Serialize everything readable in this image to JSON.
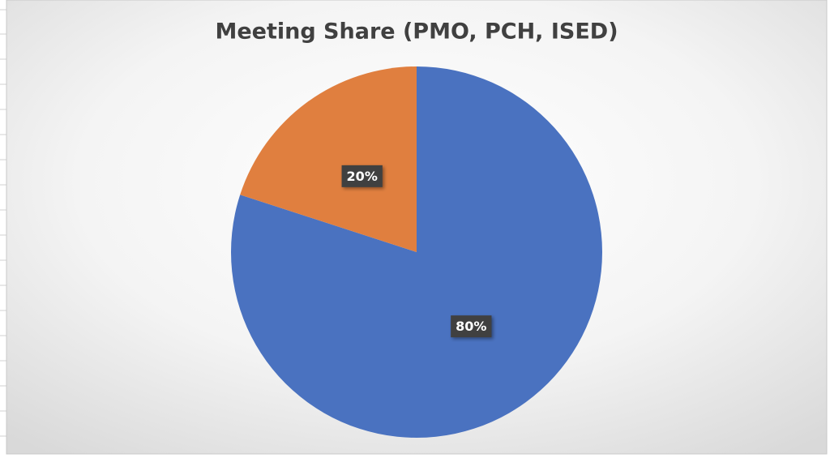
{
  "chart_data": {
    "type": "pie",
    "title": "Meeting Share (PMO, PCH, ISED)",
    "values": [
      80,
      20
    ],
    "value_labels": [
      "80%",
      "20%"
    ],
    "colors": [
      "#4a72c0",
      "#e07f3f"
    ],
    "start_angle": 0,
    "direction": "clockwise"
  }
}
